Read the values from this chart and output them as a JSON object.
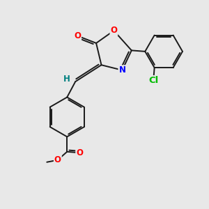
{
  "background_color": "#e8e8e8",
  "bond_color": "#1a1a1a",
  "atom_colors": {
    "O": "#ff0000",
    "N": "#0000ff",
    "Cl": "#00bb00",
    "H": "#008080",
    "C": "#1a1a1a"
  },
  "font_size": 8.5,
  "figsize": [
    3.0,
    3.0
  ],
  "dpi": 100
}
